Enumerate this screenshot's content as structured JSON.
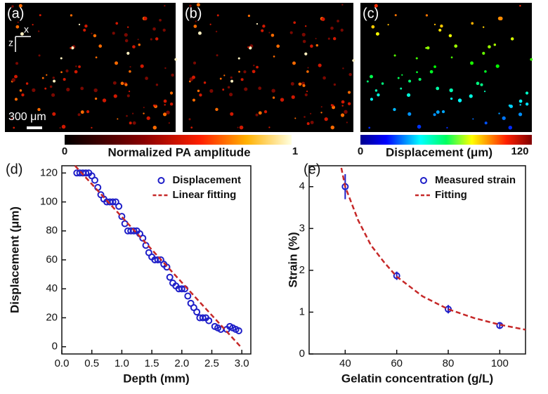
{
  "images": [
    {
      "label": "(a)"
    },
    {
      "label": "(b)"
    },
    {
      "label": "(c)"
    }
  ],
  "orientation": {
    "x": "x",
    "z": "z"
  },
  "scale_bar": "300 μm",
  "colorbars": [
    {
      "label": "Normalized PA amplitude",
      "min": 0,
      "max": 1
    },
    {
      "label": "Displacement (μm)",
      "min": 0,
      "max": 120
    }
  ],
  "chart_data": [
    {
      "type": "scatter",
      "panel_label": "(d)",
      "x_label": "Depth (mm)",
      "y_label": "Displacement (μm)",
      "xlim": [
        0,
        3.15
      ],
      "ylim": [
        -5,
        125
      ],
      "xticks": [
        {
          "value": 0,
          "label": "0.0"
        },
        {
          "value": 0.5,
          "label": "0.5"
        },
        {
          "value": 1,
          "label": "1.0"
        },
        {
          "value": 1.5,
          "label": "1.5"
        },
        {
          "value": 2,
          "label": "2.0"
        },
        {
          "value": 2.5,
          "label": "2.5"
        },
        {
          "value": 3,
          "label": "3.0"
        }
      ],
      "yticks": [
        0,
        20,
        40,
        60,
        80,
        100,
        120
      ],
      "legend": "upper right",
      "series": [
        {
          "name": "Displacement",
          "color": "#1f1fc8",
          "marker": "circle",
          "x": [
            0.25,
            0.3,
            0.35,
            0.4,
            0.45,
            0.5,
            0.55,
            0.6,
            0.65,
            0.7,
            0.75,
            0.8,
            0.85,
            0.9,
            0.95,
            1.0,
            1.05,
            1.1,
            1.15,
            1.2,
            1.25,
            1.3,
            1.35,
            1.4,
            1.45,
            1.5,
            1.55,
            1.6,
            1.65,
            1.7,
            1.75,
            1.8,
            1.85,
            1.9,
            1.95,
            2.0,
            2.05,
            2.1,
            2.15,
            2.2,
            2.25,
            2.3,
            2.35,
            2.4,
            2.45,
            2.55,
            2.6,
            2.65,
            2.75,
            2.8,
            2.85,
            2.9,
            2.95
          ],
          "values": [
            120,
            120,
            120,
            120,
            120,
            118,
            115,
            110,
            105,
            102,
            100,
            100,
            100,
            100,
            97,
            90,
            85,
            80,
            80,
            80,
            80,
            78,
            75,
            70,
            65,
            62,
            60,
            60,
            60,
            57,
            55,
            48,
            44,
            42,
            40,
            40,
            40,
            35,
            30,
            27,
            24,
            20,
            20,
            20,
            18,
            14,
            13,
            12,
            12,
            14,
            13,
            12,
            11
          ]
        },
        {
          "name": "Linear fitting",
          "color": "#c62828",
          "style": "dashed",
          "x": [
            0.22,
            2.98
          ],
          "values": [
            125,
            0
          ]
        }
      ]
    },
    {
      "type": "scatter",
      "panel_label": "(e)",
      "x_label": "Gelatin concentration (g/L)",
      "y_label": "Strain (%)",
      "xlim": [
        26,
        110
      ],
      "ylim": [
        0,
        4.5
      ],
      "xticks": [
        40,
        60,
        80,
        100
      ],
      "yticks": [
        0,
        1,
        2,
        3,
        4
      ],
      "legend": "upper right",
      "series": [
        {
          "name": "Measured strain",
          "color": "#1f1fc8",
          "marker": "circle",
          "x": [
            40,
            60,
            80,
            100
          ],
          "values": [
            4.0,
            1.87,
            1.07,
            0.68
          ],
          "errors": [
            0.3,
            0.1,
            0.1,
            0.08
          ]
        },
        {
          "name": "Fitting",
          "color": "#c62828",
          "style": "dashed",
          "x": [
            38.5,
            40,
            45,
            50,
            55,
            60,
            70,
            80,
            90,
            100,
            110
          ],
          "values": [
            4.45,
            4.0,
            3.2,
            2.6,
            2.2,
            1.85,
            1.38,
            1.07,
            0.86,
            0.7,
            0.58
          ]
        }
      ]
    }
  ]
}
